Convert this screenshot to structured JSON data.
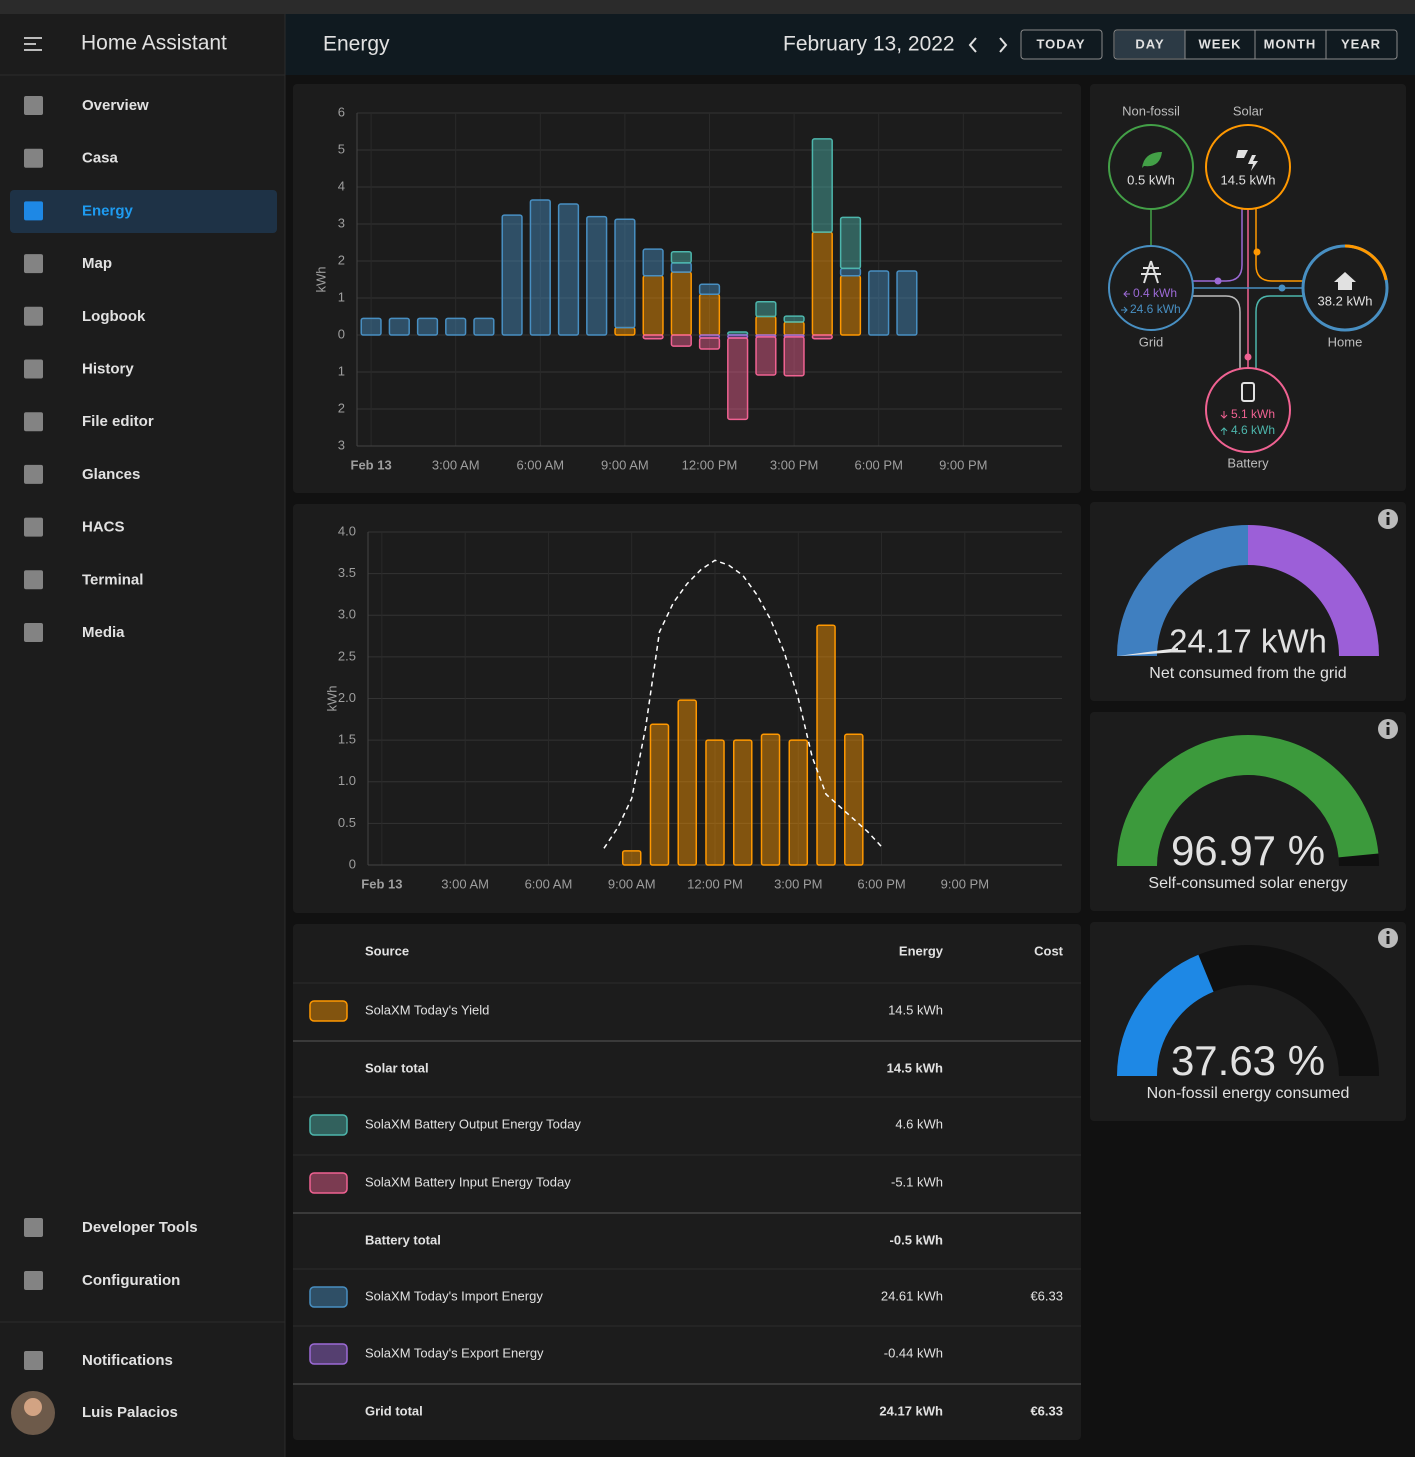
{
  "sidebar": {
    "title": "Home Assistant",
    "items": [
      "Overview",
      "Casa",
      "Energy",
      "Map",
      "Logbook",
      "History",
      "File editor",
      "Glances",
      "HACS",
      "Terminal",
      "Media"
    ],
    "bottom_items": [
      "Developer Tools",
      "Configuration"
    ],
    "notifications": "Notifications",
    "user": "Luis Palacios"
  },
  "header": {
    "title": "Energy",
    "date": "February 13, 2022",
    "buttons": [
      "TODAY",
      "DAY",
      "WEEK",
      "MONTH",
      "YEAR"
    ]
  },
  "chart_data": [
    {
      "type": "bar",
      "stacked": true,
      "ylabel": "kWh",
      "grid": true,
      "x": [
        0,
        1,
        2,
        3,
        4,
        5,
        6,
        7,
        8,
        9,
        10,
        11,
        12,
        13,
        14,
        15,
        16,
        17,
        18,
        19
      ],
      "xlim": [
        -0.5,
        24.5
      ],
      "xticks": [
        {
          "value": 0,
          "label": "Feb 13"
        },
        {
          "value": 3,
          "label": "3:00 AM"
        },
        {
          "value": 6,
          "label": "6:00 AM"
        },
        {
          "value": 9,
          "label": "9:00 AM"
        },
        {
          "value": 12,
          "label": "12:00 PM"
        },
        {
          "value": 15,
          "label": "3:00 PM"
        },
        {
          "value": 18,
          "label": "6:00 PM"
        },
        {
          "value": 21,
          "label": "9:00 PM"
        }
      ],
      "ylim": [
        -3,
        6
      ],
      "yticks": [
        {
          "value": -3,
          "label": "3"
        },
        {
          "value": -2,
          "label": "2"
        },
        {
          "value": -1,
          "label": "1"
        },
        0,
        1,
        2,
        3,
        4,
        5,
        6
      ],
      "series": [
        {
          "color": "#ff9800",
          "values": [
            0,
            0,
            0,
            0,
            0,
            0,
            0,
            0,
            0,
            0.2,
            1.6,
            1.7,
            1.1,
            0,
            0.5,
            0.35,
            2.78,
            1.6,
            0,
            0
          ]
        },
        {
          "color": "#488fc2",
          "values": [
            0.45,
            0.45,
            0.45,
            0.45,
            0.45,
            3.24,
            3.65,
            3.54,
            3.2,
            2.93,
            0.72,
            0.25,
            0.27,
            0,
            0,
            0,
            0,
            0.2,
            1.73,
            1.73
          ]
        },
        {
          "color": "#4db6ac",
          "values": [
            0,
            0,
            0,
            0,
            0,
            0,
            0,
            0,
            0,
            0,
            0,
            0.3,
            0,
            0.08,
            0.4,
            0.16,
            2.52,
            1.38,
            0,
            0
          ]
        },
        {
          "color": "#9c6ad6",
          "values": [
            0,
            0,
            0,
            0,
            0,
            0,
            0,
            0,
            0,
            0,
            0,
            0,
            -0.08,
            -0.08,
            -0.05,
            -0.05,
            0,
            0,
            0,
            0
          ]
        },
        {
          "color": "#f06292",
          "values": [
            0,
            0,
            0,
            0,
            0,
            0,
            0,
            0,
            0,
            0,
            -0.1,
            -0.3,
            -0.3,
            -2.2,
            -1.03,
            -1.05,
            -0.1,
            0,
            0,
            0
          ]
        }
      ]
    },
    {
      "type": "bar",
      "ylabel": "kWh",
      "grid": true,
      "xlim": [
        -0.5,
        24.5
      ],
      "xticks": [
        {
          "value": 0,
          "label": "Feb 13"
        },
        {
          "value": 3,
          "label": "3:00 AM"
        },
        {
          "value": 6,
          "label": "6:00 AM"
        },
        {
          "value": 9,
          "label": "9:00 AM"
        },
        {
          "value": 12,
          "label": "12:00 PM"
        },
        {
          "value": 15,
          "label": "3:00 PM"
        },
        {
          "value": 18,
          "label": "6:00 PM"
        },
        {
          "value": 21,
          "label": "9:00 PM"
        }
      ],
      "ylim": [
        0,
        4
      ],
      "yticks": [
        0,
        0.5,
        {
          "value": 1,
          "label": "1.0"
        },
        1.5,
        {
          "value": 2,
          "label": "2.0"
        },
        2.5,
        {
          "value": 3,
          "label": "3.0"
        },
        3.5,
        {
          "value": 4,
          "label": "4.0"
        }
      ],
      "series": [
        {
          "type": "bar",
          "color": "#ff9800",
          "x": [
            9,
            10,
            11,
            12,
            13,
            14,
            15,
            16,
            17
          ],
          "values": [
            0.17,
            1.69,
            1.98,
            1.5,
            1.5,
            1.57,
            1.5,
            2.88,
            1.57
          ]
        },
        {
          "type": "line",
          "color": "#ffffff",
          "dashed": true,
          "x": [
            8,
            8.5,
            9,
            9.5,
            10,
            10.5,
            11,
            11.5,
            12,
            12.5,
            13,
            13.5,
            14,
            14.5,
            15,
            15.5,
            16,
            16.5,
            17,
            17.5,
            18
          ],
          "values": [
            0.2,
            0.45,
            0.8,
            1.65,
            2.8,
            3.15,
            3.38,
            3.55,
            3.66,
            3.6,
            3.48,
            3.25,
            2.95,
            2.55,
            2.0,
            1.3,
            0.85,
            0.7,
            0.55,
            0.4,
            0.22
          ]
        }
      ]
    }
  ],
  "energy_distribution": {
    "non_fossil": {
      "label": "Non-fossil",
      "value": "0.5 kWh"
    },
    "solar": {
      "label": "Solar",
      "value": "14.5 kWh"
    },
    "grid": {
      "label": "Grid",
      "returned": "0.4 kWh",
      "consumed": "24.6 kWh"
    },
    "home": {
      "label": "Home",
      "value": "38.2 kWh"
    },
    "battery": {
      "label": "Battery",
      "charged": "5.1 kWh",
      "discharged": "4.6 kWh"
    }
  },
  "gauges": [
    {
      "value_text": "24.17 kWh",
      "label": "Net consumed from the grid"
    },
    {
      "percent": 96.97,
      "value_text": "96.97 %",
      "label": "Self-consumed solar energy",
      "color": "#3c9a3c"
    },
    {
      "percent": 37.63,
      "value_text": "37.63 %",
      "label": "Non-fossil energy consumed",
      "color": "#1e88e5"
    }
  ],
  "table": {
    "columns": [
      "Source",
      "Energy",
      "Cost"
    ],
    "rows": [
      {
        "color": "#ff9800",
        "source": "SolaXM Today's Yield",
        "energy": "14.5 kWh"
      },
      {
        "source": "Solar total",
        "energy": "14.5 kWh",
        "total": true
      },
      {
        "color": "#4db6ac",
        "source": "SolaXM Battery Output Energy Today",
        "energy": "4.6 kWh"
      },
      {
        "color": "#f06292",
        "source": "SolaXM Battery Input Energy Today",
        "energy": "-5.1 kWh"
      },
      {
        "source": "Battery total",
        "energy": "-0.5 kWh",
        "total": true
      },
      {
        "color": "#488fc2",
        "source": "SolaXM Today's Import Energy",
        "energy": "24.61 kWh",
        "cost": "€6.33"
      },
      {
        "color": "#9c6ad6",
        "source": "SolaXM Today's Export Energy",
        "energy": "-0.44 kWh"
      },
      {
        "source": "Grid total",
        "energy": "24.17 kWh",
        "cost": "€6.33",
        "total": true
      }
    ]
  }
}
